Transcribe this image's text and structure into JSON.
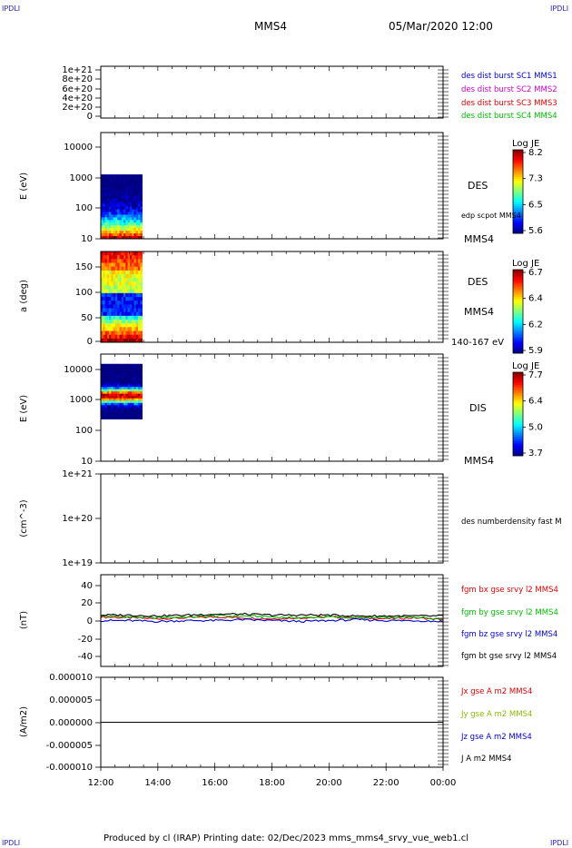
{
  "page": {
    "corner_label": "IPDLI",
    "spacecraft": "MMS4",
    "datetime": "05/Mar/2020 12:00",
    "footer": "Produced by cl (IRAP)   Printing date: 02/Dec/2023   mms_mms4_srvy_vue_web1.cl"
  },
  "chart_data": [
    {
      "type": "line",
      "id": "des-dist-burst",
      "ylabel": "",
      "yticks": [
        "1e+21",
        "8e+20",
        "6e+20",
        "4e+20",
        "2e+20",
        "0"
      ],
      "ylim": [
        0,
        1.1e+21
      ],
      "legend": [
        {
          "label": "des dist burst SC1 MMS1",
          "color": "#0000cc"
        },
        {
          "label": "des dist burst SC2 MMS2",
          "color": "#cc00cc"
        },
        {
          "label": "des dist burst SC3 MMS3",
          "color": "#dd0000"
        },
        {
          "label": "des dist burst SC4 MMS4",
          "color": "#00bb00"
        }
      ],
      "series": [
        {
          "values": [
            0,
            0
          ],
          "x": [
            0,
            12
          ],
          "style": "dashed"
        }
      ]
    },
    {
      "type": "heatmap",
      "id": "des-energy",
      "ylabel": "E (eV)",
      "scale": "log",
      "ylim": [
        10,
        20000
      ],
      "yticks": [
        "10000",
        "1000",
        "100",
        "10"
      ],
      "data_extent": {
        "t_start": 0,
        "t_end": 1.45,
        "y_min": 10,
        "y_max": 1000
      },
      "side_labels": [
        "DES",
        "edp scpot MMS4",
        "MMS4"
      ],
      "colorbar": {
        "title": "Log JE",
        "ticks": [
          "8.2",
          "7.3",
          "6.5",
          "5.6"
        ]
      }
    },
    {
      "type": "heatmap",
      "id": "des-pitch",
      "ylabel": "a (deg)",
      "ylim": [
        0,
        180
      ],
      "yticks": [
        "150",
        "100",
        "50",
        "0"
      ],
      "data_extent": {
        "t_start": 0,
        "t_end": 1.45,
        "y_min": 0,
        "y_max": 180
      },
      "side_labels": [
        "DES",
        "MMS4",
        "140-167 eV"
      ],
      "colorbar": {
        "title": "Log JE",
        "ticks": [
          "6.7",
          "6.4",
          "6.2",
          "5.9"
        ]
      }
    },
    {
      "type": "heatmap",
      "id": "dis-energy",
      "ylabel": "E (eV)",
      "scale": "log",
      "ylim": [
        10,
        20000
      ],
      "yticks": [
        "10000",
        "1000",
        "100",
        "10"
      ],
      "data_extent": {
        "t_start": 0,
        "t_end": 1.45,
        "y_min": 200,
        "y_max": 10000
      },
      "side_labels": [
        "DIS",
        "MMS4"
      ],
      "colorbar": {
        "title": "Log JE",
        "ticks": [
          "7.7",
          "6.4",
          "5.0",
          "3.7"
        ]
      }
    },
    {
      "type": "line",
      "id": "des-density",
      "ylabel": "(cm^-3)",
      "scale": "log",
      "ylim": [
        1e+19,
        1e+21
      ],
      "yticks": [
        "1e+21",
        "1e+20",
        "1e+19"
      ],
      "legend": [
        {
          "label": "des numberdensity fast M",
          "color": "#000000"
        }
      ],
      "series": []
    },
    {
      "type": "line",
      "id": "fgm-b",
      "ylabel": "(nT)",
      "ylim": [
        -50,
        50
      ],
      "yticks": [
        "40",
        "20",
        "0",
        "-20",
        "-40"
      ],
      "legend": [
        {
          "label": "fgm bx gse srvy l2 MMS4",
          "color": "#dd0000"
        },
        {
          "label": "fgm by gse srvy l2 MMS4",
          "color": "#00bb00"
        },
        {
          "label": "fgm bz gse srvy l2 MMS4",
          "color": "#0000cc"
        },
        {
          "label": "fgm bt gse srvy l2 MMS4",
          "color": "#000000"
        }
      ],
      "series": [
        {
          "color": "#dd0000",
          "x": [
            0,
            1,
            2,
            3,
            4,
            5,
            6,
            7,
            8,
            9,
            10,
            11,
            12
          ],
          "values": [
            4,
            3,
            2,
            3,
            4,
            3,
            2,
            3,
            4,
            3,
            2,
            3,
            1
          ]
        },
        {
          "color": "#00bb00",
          "x": [
            0,
            1,
            2,
            3,
            4,
            5,
            6,
            7,
            8,
            9,
            10,
            11,
            12
          ],
          "values": [
            5,
            4,
            3,
            4,
            5,
            5,
            4,
            3,
            4,
            3,
            3,
            4,
            2
          ]
        },
        {
          "color": "#0000cc",
          "x": [
            0,
            1,
            2,
            3,
            4,
            5,
            6,
            7,
            8,
            9,
            10,
            11,
            12
          ],
          "values": [
            0,
            0,
            -1,
            0,
            0,
            1,
            0,
            -1,
            0,
            1,
            0,
            0,
            -1
          ]
        },
        {
          "color": "#000000",
          "x": [
            0,
            1,
            2,
            3,
            4,
            5,
            6,
            7,
            8,
            9,
            10,
            11,
            12
          ],
          "values": [
            6,
            6,
            5,
            6,
            7,
            7,
            6,
            6,
            6,
            5,
            5,
            5,
            5
          ]
        }
      ]
    },
    {
      "type": "line",
      "id": "current-density",
      "ylabel": "(A/m2)",
      "ylim": [
        -1e-05,
        1e-05
      ],
      "yticks": [
        "0.000010",
        "0.000005",
        "0.000000",
        "-0.000005",
        "-0.000010"
      ],
      "legend": [
        {
          "label": "Jx gse A m2 MMS4",
          "color": "#dd0000"
        },
        {
          "label": "Jy gse A m2 MMS4",
          "color": "#88bb00"
        },
        {
          "label": "Jz gse A m2 MMS4",
          "color": "#0000cc"
        },
        {
          "label": "J A m2 MMS4",
          "color": "#000000"
        }
      ],
      "series": [
        {
          "color": "#000000",
          "x": [
            0,
            12
          ],
          "values": [
            0,
            0
          ]
        }
      ]
    }
  ],
  "xaxis": {
    "range_hours": [
      0,
      12
    ],
    "ticks": [
      "12:00",
      "14:00",
      "16:00",
      "18:00",
      "20:00",
      "22:00",
      "00:00"
    ]
  }
}
